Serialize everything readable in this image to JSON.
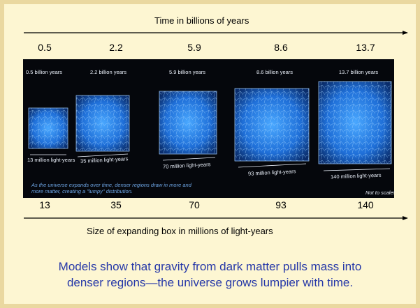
{
  "time_axis": {
    "title": "Time in billions of years",
    "labels": [
      "0.5",
      "2.2",
      "5.9",
      "8.6",
      "13.7"
    ]
  },
  "image": {
    "age_labels": [
      "0.5 billion years",
      "2.2 billion years",
      "5.9 billion years",
      "8.6 billion years",
      "13.7 billion years"
    ],
    "size_labels": [
      "13 million light-years",
      "35 million light-years",
      "70 million light-years",
      "93 million light-years",
      "140 million light-years"
    ],
    "note": "As the universe expands over time, denser regions draw in more and more matter, creating a \"lumpy\" distribution.",
    "scale_note": "Not to scale!"
  },
  "size_axis": {
    "title": "Size of expanding box in millions of light-years",
    "labels": [
      "13",
      "35",
      "70",
      "93",
      "140"
    ]
  },
  "caption": [
    "Models show that gravity from dark matter pulls mass into",
    "denser regions—the universe grows lumpier with time."
  ]
}
